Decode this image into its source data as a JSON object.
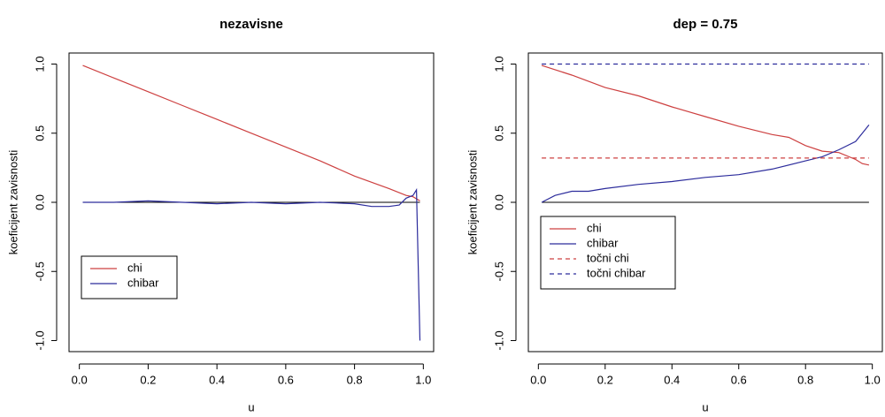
{
  "chart_data": [
    {
      "type": "line",
      "title": "nezavisne",
      "xlabel": "u",
      "ylabel": "koeficijent zavisnosti",
      "xlim": [
        -0.03,
        1.03
      ],
      "ylim": [
        -1.08,
        1.08
      ],
      "xticks": [
        {
          "value": 0,
          "label": "0.0"
        },
        0.2,
        0.4,
        0.6,
        0.8,
        {
          "value": 1,
          "label": "1.0"
        }
      ],
      "yticks": [
        {
          "value": -1,
          "label": "-1.0"
        },
        -0.5,
        {
          "value": 0,
          "label": "0.0"
        },
        0.5,
        {
          "value": 1,
          "label": "1.0"
        }
      ],
      "hlines": [
        0
      ],
      "legend": "bottomleft",
      "series": [
        {
          "name": "chi",
          "color": "#cd4040",
          "dash": false,
          "x": [
            0.01,
            0.1,
            0.2,
            0.3,
            0.4,
            0.5,
            0.6,
            0.7,
            0.8,
            0.9,
            0.95,
            0.97,
            0.99
          ],
          "values": [
            0.99,
            0.9,
            0.8,
            0.7,
            0.6,
            0.5,
            0.4,
            0.3,
            0.19,
            0.1,
            0.05,
            0.04,
            0.01
          ]
        },
        {
          "name": "chibar",
          "color": "#2c2c9c",
          "dash": false,
          "x": [
            0.01,
            0.1,
            0.2,
            0.3,
            0.4,
            0.5,
            0.6,
            0.7,
            0.8,
            0.85,
            0.9,
            0.93,
            0.95,
            0.97,
            0.98,
            0.99
          ],
          "values": [
            0,
            0,
            0.01,
            0,
            -0.01,
            0,
            -0.01,
            0,
            -0.01,
            -0.03,
            -0.03,
            -0.02,
            0.03,
            0.05,
            0.09,
            -1.0
          ]
        }
      ]
    },
    {
      "type": "line",
      "title": "dep = 0.75",
      "xlabel": "u",
      "ylabel": "koeficijent zavisnosti",
      "xlim": [
        -0.03,
        1.03
      ],
      "ylim": [
        -1.08,
        1.08
      ],
      "xticks": [
        {
          "value": 0,
          "label": "0.0"
        },
        0.2,
        0.4,
        0.6,
        0.8,
        {
          "value": 1,
          "label": "1.0"
        }
      ],
      "yticks": [
        {
          "value": -1,
          "label": "-1.0"
        },
        -0.5,
        {
          "value": 0,
          "label": "0.0"
        },
        0.5,
        {
          "value": 1,
          "label": "1.0"
        }
      ],
      "hlines": [
        0
      ],
      "legend": "left",
      "series": [
        {
          "name": "chi",
          "color": "#cd4040",
          "dash": false,
          "x": [
            0.01,
            0.1,
            0.2,
            0.3,
            0.4,
            0.5,
            0.6,
            0.7,
            0.75,
            0.8,
            0.85,
            0.9,
            0.95,
            0.97,
            0.99
          ],
          "values": [
            0.99,
            0.92,
            0.83,
            0.77,
            0.69,
            0.62,
            0.55,
            0.49,
            0.47,
            0.41,
            0.37,
            0.36,
            0.31,
            0.28,
            0.27
          ]
        },
        {
          "name": "chibar",
          "color": "#2c2c9c",
          "dash": false,
          "x": [
            0.01,
            0.05,
            0.1,
            0.15,
            0.2,
            0.3,
            0.4,
            0.5,
            0.6,
            0.7,
            0.8,
            0.85,
            0.9,
            0.95,
            0.97,
            0.99
          ],
          "values": [
            0,
            0.05,
            0.08,
            0.08,
            0.1,
            0.13,
            0.15,
            0.18,
            0.2,
            0.24,
            0.3,
            0.33,
            0.38,
            0.44,
            0.5,
            0.56
          ]
        },
        {
          "name": "točni chi",
          "color": "#cd4040",
          "dash": true,
          "x": [
            0.01,
            0.99
          ],
          "values": [
            0.32,
            0.32
          ]
        },
        {
          "name": "točni chibar",
          "color": "#2c2c9c",
          "dash": true,
          "x": [
            0.01,
            0.99
          ],
          "values": [
            1.0,
            1.0
          ]
        }
      ]
    }
  ]
}
